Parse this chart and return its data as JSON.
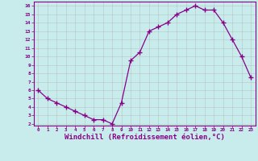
{
  "x": [
    0,
    1,
    2,
    3,
    4,
    5,
    6,
    7,
    8,
    9,
    10,
    11,
    12,
    13,
    14,
    15,
    16,
    17,
    18,
    19,
    20,
    21,
    22,
    23
  ],
  "y": [
    6.0,
    5.0,
    4.5,
    4.0,
    3.5,
    3.0,
    2.5,
    2.5,
    2.0,
    4.5,
    9.5,
    10.5,
    13.0,
    13.5,
    14.0,
    15.0,
    15.5,
    16.0,
    15.5,
    15.5,
    14.0,
    12.0,
    10.0,
    7.5
  ],
  "line_color": "#880088",
  "marker": "+",
  "marker_size": 4.0,
  "xlabel": "Windchill (Refroidissement éolien,°C)",
  "xlabel_fontsize": 6.5,
  "ylabel_ticks": [
    2,
    3,
    4,
    5,
    6,
    7,
    8,
    9,
    10,
    11,
    12,
    13,
    14,
    15,
    16
  ],
  "xtick_labels": [
    "0",
    "1",
    "2",
    "3",
    "4",
    "5",
    "6",
    "7",
    "8",
    "9",
    "10",
    "11",
    "12",
    "13",
    "14",
    "15",
    "16",
    "17",
    "18",
    "19",
    "20",
    "21",
    "22",
    "23"
  ],
  "ylim": [
    1.8,
    16.5
  ],
  "xlim": [
    -0.5,
    23.5
  ],
  "bg_color": "#c8ecec",
  "grid_color": "#aaaaaa",
  "tick_color": "#880088",
  "label_color": "#880088",
  "line_width": 0.9,
  "marker_edge_width": 1.0
}
